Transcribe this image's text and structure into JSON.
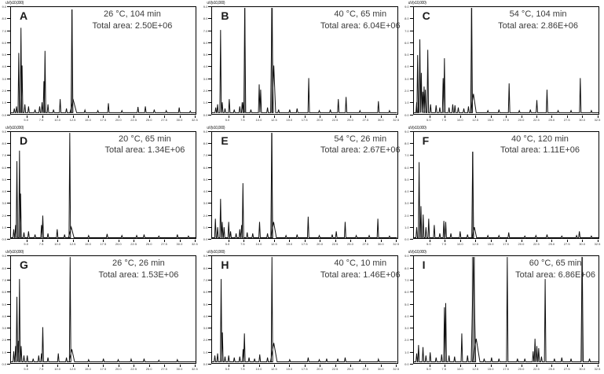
{
  "figure": {
    "scale_label": "uV(x10,000)"
  },
  "axis": {
    "x_ticks": [
      "5.0",
      "7.5",
      "10.0",
      "12.5",
      "15.0",
      "17.5",
      "20.0",
      "22.5",
      "25.0",
      "27.5",
      "30.0",
      "32.5"
    ],
    "y_ticks": [
      "9.0",
      "8.0",
      "7.0",
      "6.0",
      "5.0",
      "4.0",
      "3.0",
      "2.0",
      "1.0",
      "0.0"
    ]
  },
  "chart_data": [
    {
      "type": "line",
      "panel": "A",
      "condition": "26 °C, 104 min",
      "total_area": "2.50E+06",
      "total_area_label": "Total area: 2.50E+06",
      "peaks": [
        {
          "x": 0.018,
          "h": 0.04
        },
        {
          "x": 0.03,
          "h": 0.06
        },
        {
          "x": 0.042,
          "h": 0.57
        },
        {
          "x": 0.054,
          "h": 0.81
        },
        {
          "x": 0.06,
          "h": 0.45
        },
        {
          "x": 0.075,
          "h": 0.08
        },
        {
          "x": 0.095,
          "h": 0.06
        },
        {
          "x": 0.13,
          "h": 0.03
        },
        {
          "x": 0.155,
          "h": 0.06
        },
        {
          "x": 0.168,
          "h": 0.1
        },
        {
          "x": 0.178,
          "h": 0.3
        },
        {
          "x": 0.184,
          "h": 0.59
        },
        {
          "x": 0.2,
          "h": 0.08
        },
        {
          "x": 0.23,
          "h": 0.03
        },
        {
          "x": 0.266,
          "h": 0.13
        },
        {
          "x": 0.3,
          "h": 0.04
        },
        {
          "x": 0.33,
          "h": 0.985,
          "band": true,
          "w": 0.005
        },
        {
          "x": 0.337,
          "h": 0.12,
          "w": 0.018
        },
        {
          "x": 0.4,
          "h": 0.025
        },
        {
          "x": 0.47,
          "h": 0.02
        },
        {
          "x": 0.527,
          "h": 0.09
        },
        {
          "x": 0.6,
          "h": 0.02
        },
        {
          "x": 0.687,
          "h": 0.055
        },
        {
          "x": 0.727,
          "h": 0.06
        },
        {
          "x": 0.775,
          "h": 0.03
        },
        {
          "x": 0.84,
          "h": 0.02
        },
        {
          "x": 0.91,
          "h": 0.05
        },
        {
          "x": 0.97,
          "h": 0.015
        }
      ]
    },
    {
      "type": "line",
      "panel": "B",
      "condition": "40 °C, 65 min",
      "total_area": "6.04E+06",
      "total_area_label": "Total area: 6.04E+06",
      "peaks": [
        {
          "x": 0.02,
          "h": 0.05
        },
        {
          "x": 0.03,
          "h": 0.08
        },
        {
          "x": 0.046,
          "h": 0.79
        },
        {
          "x": 0.055,
          "h": 0.1
        },
        {
          "x": 0.07,
          "h": 0.04
        },
        {
          "x": 0.093,
          "h": 0.13
        },
        {
          "x": 0.12,
          "h": 0.03
        },
        {
          "x": 0.15,
          "h": 0.06
        },
        {
          "x": 0.163,
          "h": 0.1
        },
        {
          "x": 0.17,
          "h": 0.1
        },
        {
          "x": 0.177,
          "h": 1.0,
          "band": true,
          "w": 0.005
        },
        {
          "x": 0.21,
          "h": 0.03
        },
        {
          "x": 0.255,
          "h": 0.27
        },
        {
          "x": 0.263,
          "h": 0.22
        },
        {
          "x": 0.3,
          "h": 0.05
        },
        {
          "x": 0.324,
          "h": 1.0,
          "band": true,
          "w": 0.007
        },
        {
          "x": 0.334,
          "h": 0.45,
          "w": 0.01
        },
        {
          "x": 0.36,
          "h": 0.03
        },
        {
          "x": 0.42,
          "h": 0.03
        },
        {
          "x": 0.46,
          "h": 0.04
        },
        {
          "x": 0.523,
          "h": 0.33
        },
        {
          "x": 0.58,
          "h": 0.02
        },
        {
          "x": 0.64,
          "h": 0.03
        },
        {
          "x": 0.683,
          "h": 0.13
        },
        {
          "x": 0.725,
          "h": 0.15
        },
        {
          "x": 0.8,
          "h": 0.02
        },
        {
          "x": 0.9,
          "h": 0.11
        },
        {
          "x": 0.96,
          "h": 0.02
        }
      ]
    },
    {
      "type": "line",
      "panel": "C",
      "condition": "54 °C, 104 min",
      "total_area": "2.86E+06",
      "total_area_label": "Total area:  2.86E+06",
      "peaks": [
        {
          "x": 0.015,
          "h": 0.1
        },
        {
          "x": 0.02,
          "h": 0.55
        },
        {
          "x": 0.032,
          "h": 0.7
        },
        {
          "x": 0.04,
          "h": 0.38
        },
        {
          "x": 0.048,
          "h": 0.2
        },
        {
          "x": 0.055,
          "h": 0.25
        },
        {
          "x": 0.062,
          "h": 0.22
        },
        {
          "x": 0.075,
          "h": 0.6
        },
        {
          "x": 0.09,
          "h": 0.08
        },
        {
          "x": 0.12,
          "h": 0.07
        },
        {
          "x": 0.14,
          "h": 0.05
        },
        {
          "x": 0.158,
          "h": 0.33
        },
        {
          "x": 0.165,
          "h": 0.52
        },
        {
          "x": 0.19,
          "h": 0.05
        },
        {
          "x": 0.21,
          "h": 0.08
        },
        {
          "x": 0.222,
          "h": 0.07
        },
        {
          "x": 0.24,
          "h": 0.05
        },
        {
          "x": 0.27,
          "h": 0.04
        },
        {
          "x": 0.295,
          "h": 0.06
        },
        {
          "x": 0.312,
          "h": 1.0,
          "band": true,
          "w": 0.005
        },
        {
          "x": 0.322,
          "h": 0.18,
          "w": 0.015
        },
        {
          "x": 0.4,
          "h": 0.02
        },
        {
          "x": 0.46,
          "h": 0.03
        },
        {
          "x": 0.515,
          "h": 0.28
        },
        {
          "x": 0.57,
          "h": 0.02
        },
        {
          "x": 0.63,
          "h": 0.03
        },
        {
          "x": 0.665,
          "h": 0.12
        },
        {
          "x": 0.72,
          "h": 0.22
        },
        {
          "x": 0.78,
          "h": 0.02
        },
        {
          "x": 0.85,
          "h": 0.02
        },
        {
          "x": 0.9,
          "h": 0.33
        },
        {
          "x": 0.96,
          "h": 0.02
        }
      ]
    },
    {
      "type": "line",
      "panel": "D",
      "condition": "20 °C, 65 min",
      "total_area": "1.34E+06",
      "total_area_label": "Total area: 1.34E+06",
      "peaks": [
        {
          "x": 0.015,
          "h": 0.08
        },
        {
          "x": 0.025,
          "h": 0.12
        },
        {
          "x": 0.032,
          "h": 0.73
        },
        {
          "x": 0.046,
          "h": 0.83
        },
        {
          "x": 0.052,
          "h": 0.42
        },
        {
          "x": 0.07,
          "h": 0.05
        },
        {
          "x": 0.095,
          "h": 0.06
        },
        {
          "x": 0.13,
          "h": 0.03
        },
        {
          "x": 0.165,
          "h": 0.12
        },
        {
          "x": 0.172,
          "h": 0.21
        },
        {
          "x": 0.2,
          "h": 0.04
        },
        {
          "x": 0.25,
          "h": 0.08
        },
        {
          "x": 0.29,
          "h": 0.03
        },
        {
          "x": 0.318,
          "h": 1.0,
          "w": 0.004
        },
        {
          "x": 0.326,
          "h": 0.1,
          "w": 0.015
        },
        {
          "x": 0.42,
          "h": 0.02
        },
        {
          "x": 0.52,
          "h": 0.035
        },
        {
          "x": 0.6,
          "h": 0.02
        },
        {
          "x": 0.68,
          "h": 0.02
        },
        {
          "x": 0.72,
          "h": 0.03
        },
        {
          "x": 0.8,
          "h": 0.015
        },
        {
          "x": 0.9,
          "h": 0.03
        },
        {
          "x": 0.96,
          "h": 0.015
        }
      ]
    },
    {
      "type": "line",
      "panel": "E",
      "condition": "54 °C, 26 min",
      "total_area": "2.67E+06",
      "total_area_label": "Total area: 2.67E+06",
      "peaks": [
        {
          "x": 0.018,
          "h": 0.18
        },
        {
          "x": 0.03,
          "h": 0.1
        },
        {
          "x": 0.046,
          "h": 0.37
        },
        {
          "x": 0.055,
          "h": 0.15
        },
        {
          "x": 0.065,
          "h": 0.1
        },
        {
          "x": 0.09,
          "h": 0.15
        },
        {
          "x": 0.1,
          "h": 0.06
        },
        {
          "x": 0.13,
          "h": 0.04
        },
        {
          "x": 0.15,
          "h": 0.08
        },
        {
          "x": 0.16,
          "h": 0.12
        },
        {
          "x": 0.167,
          "h": 0.52
        },
        {
          "x": 0.19,
          "h": 0.05
        },
        {
          "x": 0.22,
          "h": 0.04
        },
        {
          "x": 0.257,
          "h": 0.15
        },
        {
          "x": 0.3,
          "h": 0.04
        },
        {
          "x": 0.323,
          "h": 1.0,
          "band": true,
          "w": 0.005
        },
        {
          "x": 0.333,
          "h": 0.15,
          "w": 0.015
        },
        {
          "x": 0.4,
          "h": 0.02
        },
        {
          "x": 0.46,
          "h": 0.03
        },
        {
          "x": 0.52,
          "h": 0.2
        },
        {
          "x": 0.58,
          "h": 0.02
        },
        {
          "x": 0.65,
          "h": 0.03
        },
        {
          "x": 0.672,
          "h": 0.06
        },
        {
          "x": 0.72,
          "h": 0.15
        },
        {
          "x": 0.78,
          "h": 0.02
        },
        {
          "x": 0.85,
          "h": 0.02
        },
        {
          "x": 0.897,
          "h": 0.18
        },
        {
          "x": 0.96,
          "h": 0.015
        }
      ]
    },
    {
      "type": "line",
      "panel": "F",
      "condition": "40 °C, 120 min",
      "total_area": "1.11E+06",
      "total_area_label": "Total area:  1.11E+06",
      "peaks": [
        {
          "x": 0.015,
          "h": 0.1
        },
        {
          "x": 0.028,
          "h": 0.72
        },
        {
          "x": 0.038,
          "h": 0.3
        },
        {
          "x": 0.05,
          "h": 0.22
        },
        {
          "x": 0.065,
          "h": 0.1
        },
        {
          "x": 0.08,
          "h": 0.18
        },
        {
          "x": 0.11,
          "h": 0.12
        },
        {
          "x": 0.14,
          "h": 0.04
        },
        {
          "x": 0.162,
          "h": 0.16
        },
        {
          "x": 0.172,
          "h": 0.15
        },
        {
          "x": 0.2,
          "h": 0.04
        },
        {
          "x": 0.25,
          "h": 0.06
        },
        {
          "x": 0.29,
          "h": 0.03
        },
        {
          "x": 0.318,
          "h": 0.82,
          "band": true,
          "w": 0.005
        },
        {
          "x": 0.327,
          "h": 0.1,
          "w": 0.012
        },
        {
          "x": 0.4,
          "h": 0.02
        },
        {
          "x": 0.46,
          "h": 0.02
        },
        {
          "x": 0.513,
          "h": 0.05
        },
        {
          "x": 0.6,
          "h": 0.015
        },
        {
          "x": 0.66,
          "h": 0.02
        },
        {
          "x": 0.72,
          "h": 0.03
        },
        {
          "x": 0.8,
          "h": 0.015
        },
        {
          "x": 0.88,
          "h": 0.02
        },
        {
          "x": 0.895,
          "h": 0.06
        },
        {
          "x": 0.96,
          "h": 0.015
        }
      ]
    },
    {
      "type": "line",
      "panel": "G",
      "condition": "26 °C, 26 min",
      "total_area": "1.53E+06",
      "total_area_label": "Total area: 1.53E+06",
      "peaks": [
        {
          "x": 0.015,
          "h": 0.1
        },
        {
          "x": 0.025,
          "h": 0.15
        },
        {
          "x": 0.032,
          "h": 0.62
        },
        {
          "x": 0.04,
          "h": 0.2
        },
        {
          "x": 0.046,
          "h": 0.79
        },
        {
          "x": 0.055,
          "h": 0.15
        },
        {
          "x": 0.07,
          "h": 0.06
        },
        {
          "x": 0.088,
          "h": 0.06
        },
        {
          "x": 0.12,
          "h": 0.03
        },
        {
          "x": 0.15,
          "h": 0.06
        },
        {
          "x": 0.165,
          "h": 0.08
        },
        {
          "x": 0.172,
          "h": 0.33
        },
        {
          "x": 0.2,
          "h": 0.04
        },
        {
          "x": 0.256,
          "h": 0.08
        },
        {
          "x": 0.3,
          "h": 0.04
        },
        {
          "x": 0.32,
          "h": 1.0,
          "w": 0.004
        },
        {
          "x": 0.329,
          "h": 0.12,
          "w": 0.015
        },
        {
          "x": 0.42,
          "h": 0.02
        },
        {
          "x": 0.5,
          "h": 0.03
        },
        {
          "x": 0.58,
          "h": 0.02
        },
        {
          "x": 0.65,
          "h": 0.025
        },
        {
          "x": 0.72,
          "h": 0.03
        },
        {
          "x": 0.8,
          "h": 0.015
        },
        {
          "x": 0.9,
          "h": 0.02
        }
      ]
    },
    {
      "type": "line",
      "panel": "H",
      "condition": "40 °C, 10 min",
      "total_area": "1.46E+06",
      "total_area_label": "Total area: 1.46E+06",
      "peaks": [
        {
          "x": 0.015,
          "h": 0.06
        },
        {
          "x": 0.03,
          "h": 0.08
        },
        {
          "x": 0.049,
          "h": 0.79
        },
        {
          "x": 0.056,
          "h": 0.28
        },
        {
          "x": 0.07,
          "h": 0.05
        },
        {
          "x": 0.09,
          "h": 0.06
        },
        {
          "x": 0.12,
          "h": 0.04
        },
        {
          "x": 0.15,
          "h": 0.05
        },
        {
          "x": 0.168,
          "h": 0.12
        },
        {
          "x": 0.175,
          "h": 0.27
        },
        {
          "x": 0.2,
          "h": 0.04
        },
        {
          "x": 0.23,
          "h": 0.03
        },
        {
          "x": 0.258,
          "h": 0.07
        },
        {
          "x": 0.3,
          "h": 0.04
        },
        {
          "x": 0.324,
          "h": 1.0,
          "w": 0.004
        },
        {
          "x": 0.334,
          "h": 0.18,
          "w": 0.018
        },
        {
          "x": 0.42,
          "h": 0.02
        },
        {
          "x": 0.52,
          "h": 0.04
        },
        {
          "x": 0.58,
          "h": 0.02
        },
        {
          "x": 0.62,
          "h": 0.03
        },
        {
          "x": 0.68,
          "h": 0.03
        },
        {
          "x": 0.72,
          "h": 0.04
        },
        {
          "x": 0.8,
          "h": 0.02
        },
        {
          "x": 0.9,
          "h": 0.025
        }
      ]
    },
    {
      "type": "line",
      "panel": "I",
      "condition": "60 °C, 65 min",
      "total_area": "6.86E+06",
      "total_area_label": "Total area: 6.86E+06",
      "peaks": [
        {
          "x": 0.015,
          "h": 0.08
        },
        {
          "x": 0.025,
          "h": 0.16
        },
        {
          "x": 0.049,
          "h": 0.14
        },
        {
          "x": 0.065,
          "h": 0.06
        },
        {
          "x": 0.088,
          "h": 0.09
        },
        {
          "x": 0.12,
          "h": 0.04
        },
        {
          "x": 0.15,
          "h": 0.07
        },
        {
          "x": 0.165,
          "h": 0.52
        },
        {
          "x": 0.172,
          "h": 0.56
        },
        {
          "x": 0.19,
          "h": 0.06
        },
        {
          "x": 0.22,
          "h": 0.05
        },
        {
          "x": 0.259,
          "h": 0.27
        },
        {
          "x": 0.29,
          "h": 0.06
        },
        {
          "x": 0.322,
          "h": 1.0,
          "band": true,
          "w": 0.012
        },
        {
          "x": 0.337,
          "h": 0.22,
          "w": 0.02
        },
        {
          "x": 0.38,
          "h": 0.03
        },
        {
          "x": 0.42,
          "h": 0.04
        },
        {
          "x": 0.46,
          "h": 0.03
        },
        {
          "x": 0.505,
          "h": 1.0,
          "w": 0.004
        },
        {
          "x": 0.56,
          "h": 0.03
        },
        {
          "x": 0.6,
          "h": 0.03
        },
        {
          "x": 0.645,
          "h": 0.1
        },
        {
          "x": 0.655,
          "h": 0.22
        },
        {
          "x": 0.665,
          "h": 0.15
        },
        {
          "x": 0.675,
          "h": 0.13
        },
        {
          "x": 0.69,
          "h": 0.05
        },
        {
          "x": 0.71,
          "h": 0.79
        },
        {
          "x": 0.76,
          "h": 0.03
        },
        {
          "x": 0.8,
          "h": 0.04
        },
        {
          "x": 0.85,
          "h": 0.03
        },
        {
          "x": 0.91,
          "h": 1.0,
          "band": true,
          "w": 0.006
        },
        {
          "x": 0.95,
          "h": 0.03
        }
      ]
    }
  ]
}
